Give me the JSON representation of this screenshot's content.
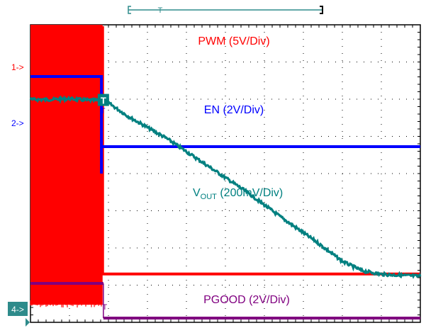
{
  "chart_data": {
    "type": "line",
    "title": "",
    "grid": true,
    "divisions": {
      "x": 10,
      "y": 8
    },
    "trigger_label": "T",
    "channels": [
      {
        "id": "pwm",
        "marker": "1->",
        "label": "PWM (5V/Div)",
        "color": "#ff0000",
        "switching_until_div": 1.85,
        "high_div": 0.55,
        "low_div": 1.3
      },
      {
        "id": "en",
        "marker": "2->",
        "label": "EN (2V/Div)",
        "color": "#0000ff",
        "high_div": 2.45,
        "low_div": 4.0,
        "fall_at_div": 1.82
      },
      {
        "id": "vout",
        "label_main": "V",
        "label_sub": "OUT",
        "label_tail": " (200mV/Div)",
        "color": "#008080",
        "points_div": [
          [
            0,
            5.0
          ],
          [
            0.5,
            5.0
          ],
          [
            1.0,
            5.02
          ],
          [
            1.5,
            4.98
          ],
          [
            1.9,
            4.98
          ],
          [
            2.5,
            4.55
          ],
          [
            3.5,
            3.95
          ],
          [
            4.5,
            3.25
          ],
          [
            5.5,
            2.55
          ],
          [
            6.5,
            1.78
          ],
          [
            7.3,
            1.2
          ],
          [
            8.0,
            0.65
          ],
          [
            8.5,
            0.4
          ],
          [
            9.0,
            0.3
          ],
          [
            10.0,
            0.25
          ]
        ]
      },
      {
        "id": "pgood",
        "marker": "4->",
        "label": "PGOOD (2V/Div)",
        "color": "#800080",
        "high_div": 0.95,
        "low_div": 0.18,
        "fall_at_div": 1.87
      }
    ]
  }
}
